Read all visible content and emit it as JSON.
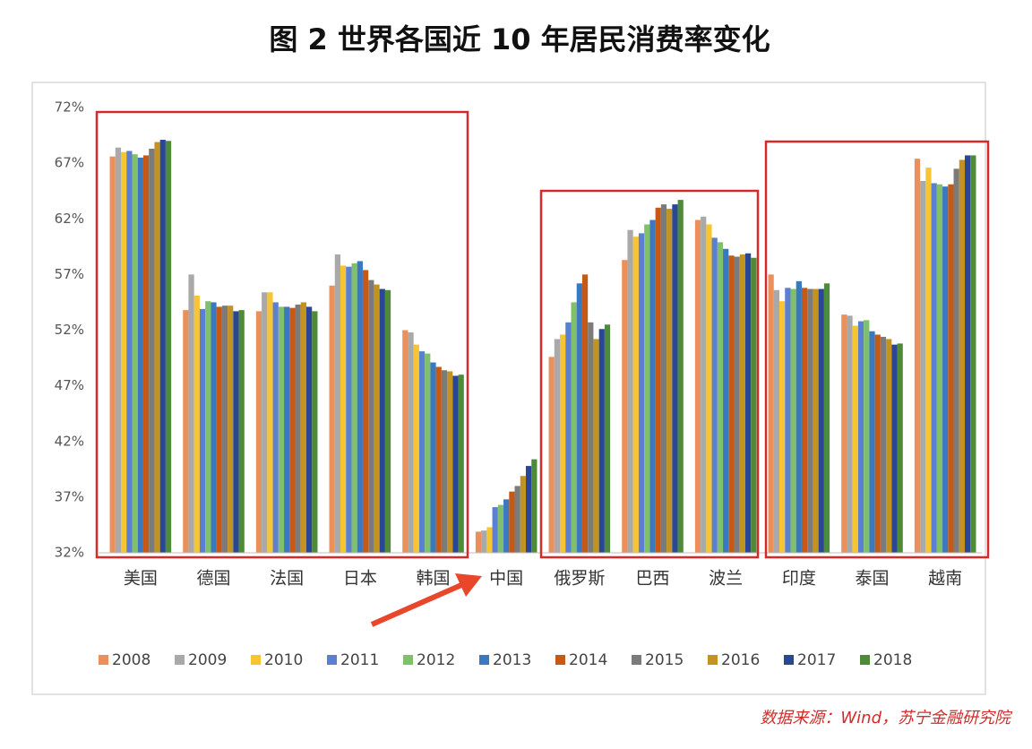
{
  "chart_data": {
    "type": "bar",
    "title": "图 2 世界各国近 10 年居民消费率变化",
    "source": "数据来源：Wind，苏宁金融研究院",
    "categories": [
      "美国",
      "德国",
      "法国",
      "日本",
      "韩国",
      "中国",
      "俄罗斯",
      "巴西",
      "波兰",
      "印度",
      "泰国",
      "越南"
    ],
    "ylim": [
      32,
      72
    ],
    "yticks": [
      {
        "value": 32,
        "label": "32%"
      },
      {
        "value": 37,
        "label": "37%"
      },
      {
        "value": 42,
        "label": "42%"
      },
      {
        "value": 47,
        "label": "47%"
      },
      {
        "value": 52,
        "label": "52%"
      },
      {
        "value": 57,
        "label": "57%"
      },
      {
        "value": 62,
        "label": "62%"
      },
      {
        "value": 67,
        "label": "67%"
      },
      {
        "value": 72,
        "label": "72%"
      }
    ],
    "grid": false,
    "series": [
      {
        "name": "2008",
        "color": "#e9905c",
        "values": [
          67.6,
          53.8,
          53.7,
          56.0,
          52.0,
          33.9,
          49.6,
          58.3,
          61.9,
          57.0,
          53.4,
          67.4
        ]
      },
      {
        "name": "2009",
        "color": "#a9a9a9",
        "values": [
          68.4,
          57.0,
          55.4,
          58.8,
          51.8,
          34.0,
          51.2,
          61.0,
          62.2,
          55.6,
          53.3,
          65.4
        ]
      },
      {
        "name": "2010",
        "color": "#f7c531",
        "values": [
          68.0,
          55.1,
          55.4,
          57.8,
          50.7,
          34.3,
          51.6,
          60.4,
          61.5,
          54.6,
          52.4,
          66.6
        ]
      },
      {
        "name": "2011",
        "color": "#5b7fd1",
        "values": [
          68.1,
          53.9,
          54.5,
          57.7,
          50.1,
          36.1,
          52.7,
          60.7,
          60.3,
          55.8,
          52.8,
          65.2
        ]
      },
      {
        "name": "2012",
        "color": "#80c06c",
        "values": [
          67.8,
          54.6,
          54.1,
          58.0,
          49.9,
          36.3,
          54.5,
          61.5,
          59.9,
          55.7,
          52.9,
          65.1
        ]
      },
      {
        "name": "2013",
        "color": "#3a78bf",
        "values": [
          67.5,
          54.5,
          54.1,
          58.2,
          49.1,
          36.8,
          56.2,
          61.9,
          59.3,
          56.4,
          51.9,
          64.9
        ]
      },
      {
        "name": "2014",
        "color": "#c55a17",
        "values": [
          67.7,
          54.1,
          54.0,
          57.4,
          48.7,
          37.5,
          57.0,
          63.0,
          58.7,
          55.8,
          51.6,
          65.1
        ]
      },
      {
        "name": "2015",
        "color": "#7b7b7b",
        "values": [
          68.3,
          54.2,
          54.3,
          56.5,
          48.4,
          38.0,
          52.7,
          63.3,
          58.6,
          55.7,
          51.4,
          66.5
        ]
      },
      {
        "name": "2016",
        "color": "#c39321",
        "values": [
          68.9,
          54.2,
          54.5,
          56.1,
          48.3,
          38.9,
          51.2,
          62.9,
          58.8,
          55.7,
          51.2,
          67.3
        ]
      },
      {
        "name": "2017",
        "color": "#2a4796",
        "values": [
          69.1,
          53.7,
          54.1,
          55.7,
          47.9,
          39.8,
          52.1,
          63.3,
          58.9,
          55.7,
          50.7,
          67.7
        ]
      },
      {
        "name": "2018",
        "color": "#4f8a3a",
        "values": [
          69.0,
          53.8,
          53.7,
          55.6,
          48.0,
          40.4,
          52.5,
          63.7,
          58.5,
          56.2,
          50.8,
          67.7
        ]
      }
    ]
  }
}
